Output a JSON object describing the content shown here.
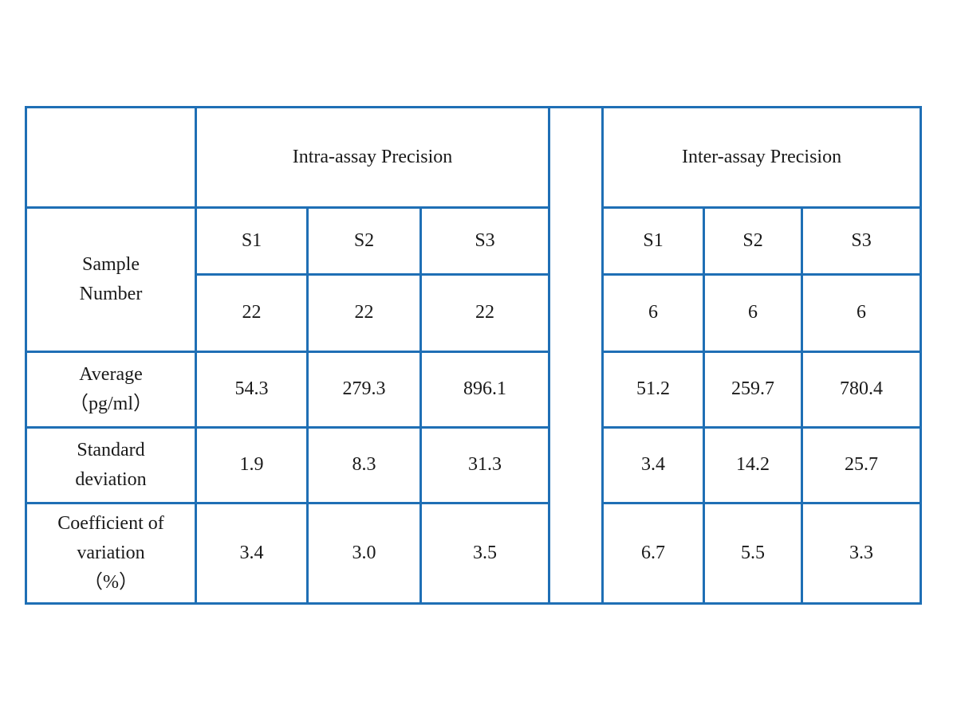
{
  "header": {
    "intra": "Intra-assay Precision",
    "inter": "Inter-assay Precision"
  },
  "rows": {
    "sample_number": {
      "line1": "Sample",
      "line2": "Number"
    },
    "average": {
      "line1": "Average",
      "line2": "（pg/ml）"
    },
    "std_dev": {
      "line1": "Standard",
      "line2": "deviation"
    },
    "cv": {
      "line1": "Coefficient of",
      "line2": "variation",
      "line3": "（%）"
    }
  },
  "intra": {
    "samples": [
      "S1",
      "S2",
      "S3"
    ],
    "numbers": [
      "22",
      "22",
      "22"
    ],
    "average": [
      "54.3",
      "279.3",
      "896.1"
    ],
    "std_dev": [
      "1.9",
      "8.3",
      "31.3"
    ],
    "cv": [
      "3.4",
      "3.0",
      "3.5"
    ]
  },
  "inter": {
    "samples": [
      "S1",
      "S2",
      "S3"
    ],
    "numbers": [
      "6",
      "6",
      "6"
    ],
    "average": [
      "51.2",
      "259.7",
      "780.4"
    ],
    "std_dev": [
      "3.4",
      "14.2",
      "25.7"
    ],
    "cv": [
      "6.7",
      "5.5",
      "3.3"
    ]
  },
  "colors": {
    "border": "#1f6fb5"
  }
}
